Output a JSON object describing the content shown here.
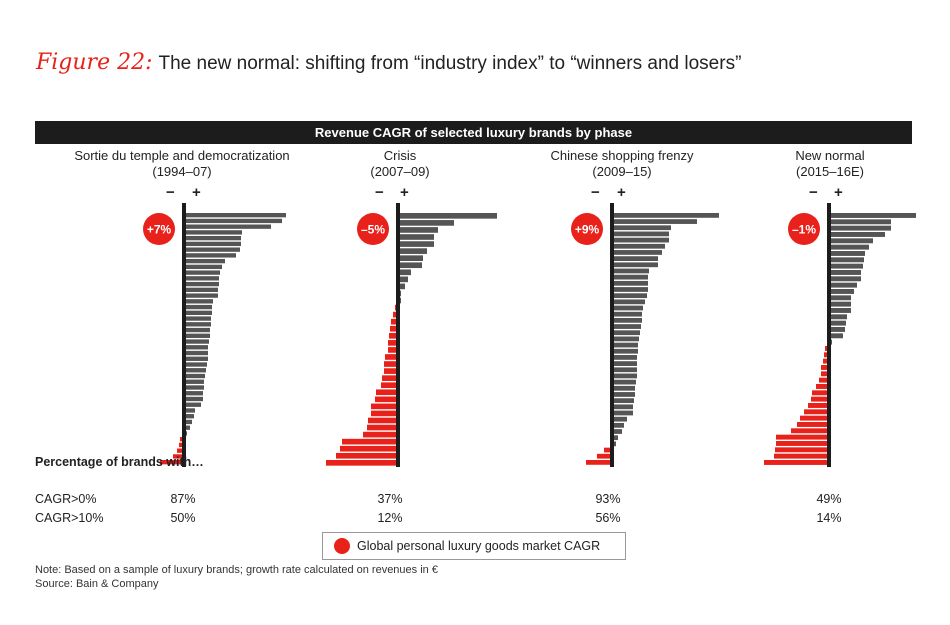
{
  "header": {
    "figure_label": "Figure 22:",
    "title": "The new normal: shifting from “industry index” to “winners and losers”"
  },
  "chart_data": {
    "type": "bar",
    "orientation": "horizontal",
    "title": "Revenue CAGR of selected luxury brands by phase",
    "axis_signs": {
      "minus": "−",
      "plus": "+"
    },
    "colors": {
      "positive": "#555555",
      "negative": "#e8211b",
      "marker": "#e8211b",
      "axis": "#1c1c1c"
    },
    "value_unit": "relative CAGR (estimated, unlabeled axis)",
    "panels": [
      {
        "name": "Sortie du temple and democratization",
        "period": "(1994–07)",
        "market_cagr": "+7%",
        "values": [
          100,
          96,
          85,
          56,
          55,
          55,
          54,
          50,
          39,
          36,
          34,
          33,
          33,
          32,
          32,
          27,
          26,
          26,
          25,
          25,
          24,
          24,
          23,
          22,
          22,
          22,
          21,
          20,
          19,
          18,
          18,
          17,
          17,
          15,
          9,
          8,
          6,
          4,
          1,
          -2,
          -3,
          -5,
          -9,
          -22
        ]
      },
      {
        "name": "Crisis",
        "period": "(2007–09)",
        "market_cagr": "–5%",
        "values": [
          97,
          54,
          38,
          34,
          34,
          27,
          23,
          22,
          11,
          8,
          5,
          1,
          1,
          -1,
          -3,
          -5,
          -6,
          -7,
          -8,
          -8,
          -11,
          -12,
          -12,
          -14,
          -15,
          -20,
          -21,
          -25,
          -25,
          -28,
          -29,
          -33,
          -54,
          -56,
          -60,
          -70
        ]
      },
      {
        "name": "Chinese shopping frenzy",
        "period": "(2009–15)",
        "market_cagr": "+9%",
        "values": [
          105,
          83,
          57,
          55,
          55,
          51,
          48,
          44,
          44,
          35,
          34,
          34,
          34,
          33,
          31,
          29,
          28,
          28,
          27,
          26,
          25,
          24,
          24,
          23,
          23,
          23,
          23,
          22,
          21,
          21,
          20,
          19,
          19,
          13,
          10,
          8,
          4,
          2,
          -6,
          -13,
          -24
        ]
      },
      {
        "name": "New normal",
        "period": "(2015–16E)",
        "market_cagr": "–1%",
        "values": [
          85,
          60,
          60,
          54,
          42,
          38,
          34,
          33,
          32,
          30,
          30,
          26,
          23,
          20,
          20,
          20,
          16,
          15,
          14,
          12,
          1,
          -2,
          -3,
          -4,
          -6,
          -6,
          -8,
          -11,
          -15,
          -16,
          -19,
          -23,
          -27,
          -30,
          -36,
          -51,
          -51,
          -52,
          -53,
          -63
        ]
      }
    ]
  },
  "summary": {
    "heading": "Percentage of brands with…",
    "rows": [
      {
        "label": "CAGR>0%",
        "values": [
          "87%",
          "37%",
          "93%",
          "49%"
        ]
      },
      {
        "label": "CAGR>10%",
        "values": [
          "50%",
          "12%",
          "56%",
          "14%"
        ]
      }
    ]
  },
  "legend": {
    "label": "Global personal luxury goods market CAGR"
  },
  "footer": {
    "note": "Note: Based on a sample of luxury brands; growth rate calculated on revenues in €",
    "source": "Source: Bain & Company"
  }
}
